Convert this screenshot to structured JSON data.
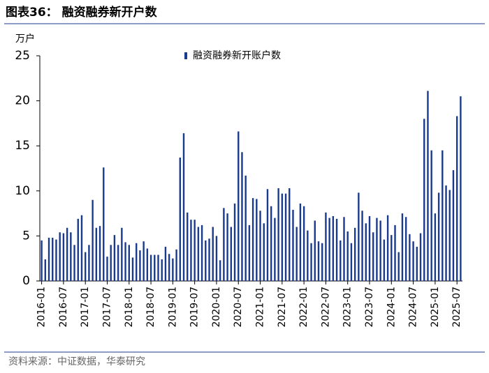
{
  "chart_data": {
    "type": "bar",
    "title": "图表36：  融资融券新开户数",
    "ylabel": "万户",
    "source": "资料来源：中证数据，华泰研究",
    "legend": "top",
    "series": [
      {
        "name": "融资融券新开账户数",
        "color": "#1a3a8c",
        "values": [
          4.5,
          2.4,
          4.8,
          4.8,
          4.6,
          5.4,
          5.3,
          5.9,
          5.4,
          4.0,
          6.9,
          7.3,
          3.2,
          4.0,
          9.0,
          5.9,
          6.1,
          12.6,
          2.7,
          4.0,
          5.1,
          4.0,
          5.9,
          4.3,
          4.0,
          2.6,
          4.2,
          3.4,
          4.4,
          3.6,
          2.9,
          2.9,
          2.9,
          2.4,
          3.8,
          3.0,
          2.5,
          3.5,
          13.7,
          16.4,
          7.6,
          6.8,
          6.8,
          6.0,
          6.2,
          4.5,
          4.7,
          6.0,
          5.0,
          2.3,
          8.1,
          7.5,
          6.0,
          8.6,
          16.6,
          14.3,
          11.7,
          6.2,
          9.2,
          9.1,
          7.8,
          6.4,
          10.2,
          8.3,
          7.0,
          10.3,
          9.7,
          9.7,
          10.3,
          7.9,
          6.0,
          8.6,
          8.3,
          5.6,
          4.2,
          6.7,
          4.4,
          4.2,
          7.6,
          7.0,
          7.2,
          6.9,
          4.5,
          7.1,
          5.5,
          4.2,
          5.9,
          9.8,
          7.8,
          6.4,
          7.2,
          5.4,
          7.0,
          6.7,
          4.6,
          7.3,
          5.1,
          6.2,
          3.2,
          7.5,
          7.1,
          5.2,
          4.4,
          3.8,
          5.3,
          18.0,
          21.1,
          14.5,
          7.5,
          9.8,
          14.5,
          10.6,
          10.1,
          12.3,
          18.3,
          20.5
        ]
      }
    ],
    "categories": [
      "2016-01",
      null,
      null,
      null,
      null,
      null,
      "2016-07",
      null,
      null,
      null,
      null,
      null,
      "2017-01",
      null,
      null,
      null,
      null,
      null,
      "2017-07",
      null,
      null,
      null,
      null,
      null,
      "2018-01",
      null,
      null,
      null,
      null,
      null,
      "2018-07",
      null,
      null,
      null,
      null,
      null,
      "2019-01",
      null,
      null,
      null,
      null,
      null,
      "2019-07",
      null,
      null,
      null,
      null,
      null,
      "2020-01",
      null,
      null,
      null,
      null,
      null,
      "2020-07",
      null,
      null,
      null,
      null,
      null,
      "2021-01",
      null,
      null,
      null,
      null,
      null,
      "2021-07",
      null,
      null,
      null,
      null,
      null,
      "2022-01",
      null,
      null,
      null,
      null,
      null,
      "2022-07",
      null,
      null,
      null,
      null,
      null,
      "2023-01",
      null,
      null,
      null,
      null,
      null,
      "2023-07",
      null,
      null,
      null,
      null,
      null,
      "2024-01",
      null,
      null,
      null,
      null,
      null,
      "2024-07",
      null,
      null,
      null,
      null,
      null,
      "2025-01",
      null,
      null,
      null,
      null,
      null,
      "2025-07",
      null
    ],
    "ylim": [
      0,
      25
    ],
    "yticks": [
      0,
      5,
      10,
      15,
      20,
      25
    ]
  }
}
